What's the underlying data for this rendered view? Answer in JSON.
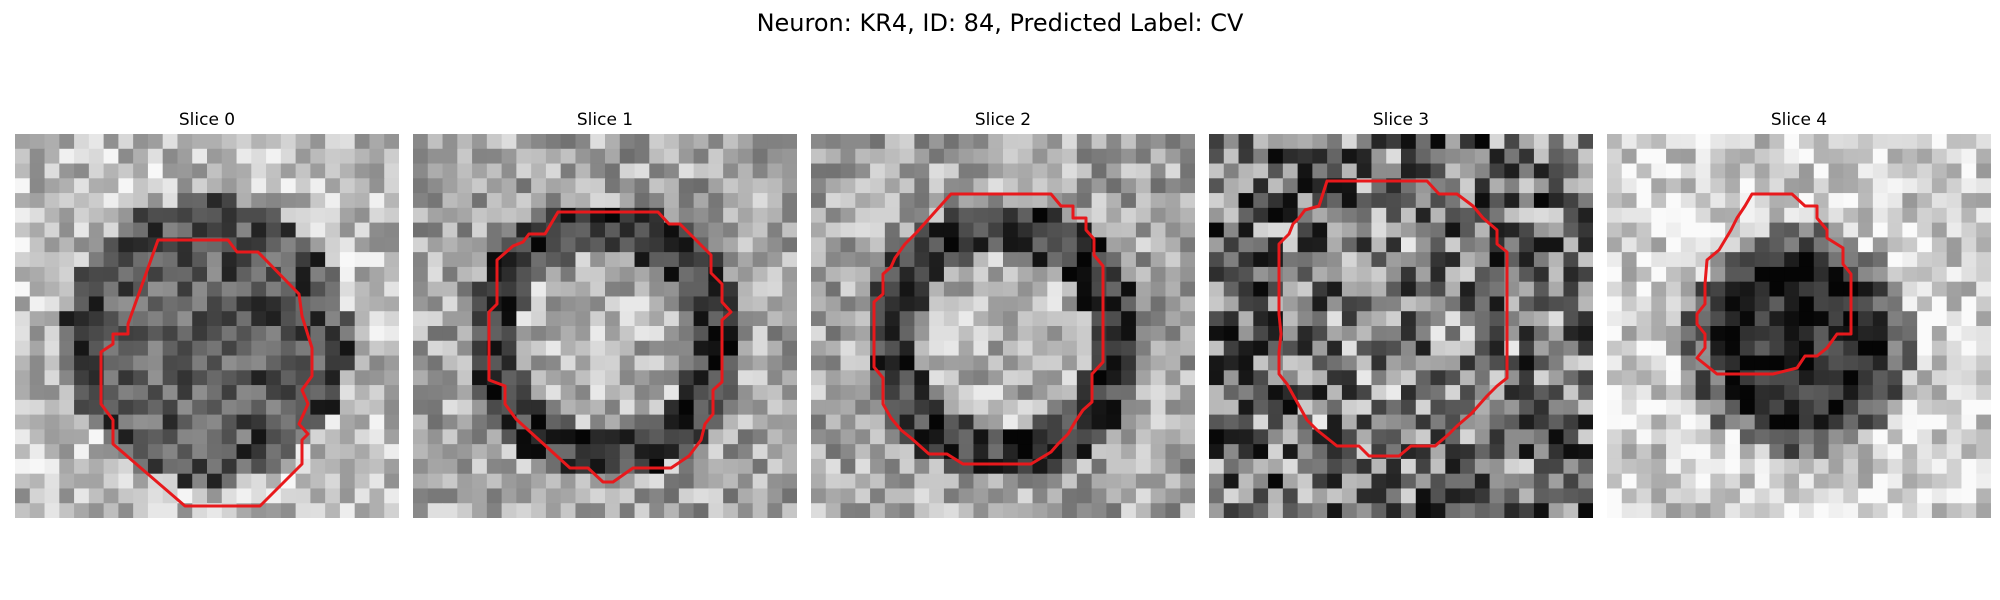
{
  "figure": {
    "title": "Neuron: KR4, ID: 84, Predicted Label: CV"
  },
  "colors": {
    "contour": "#e8191c",
    "background": "#ffffff"
  },
  "panels": [
    {
      "label": "Slice 0",
      "seed": 11,
      "shape": "ring-dark",
      "pos": 0
    },
    {
      "label": "Slice 1",
      "seed": 27,
      "shape": "ring-bright",
      "pos": 1
    },
    {
      "label": "Slice 2",
      "seed": 43,
      "shape": "ring-bright",
      "pos": 2
    },
    {
      "label": "Slice 3",
      "seed": 59,
      "shape": "noisy",
      "pos": 3
    },
    {
      "label": "Slice 4",
      "seed": 71,
      "shape": "blob-dark",
      "pos": 4
    }
  ]
}
